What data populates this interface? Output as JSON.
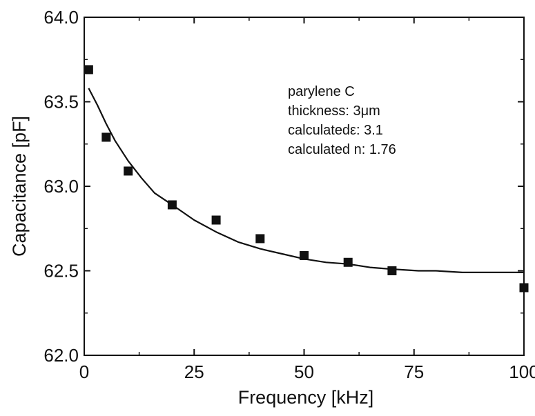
{
  "chart_data": {
    "type": "scatter",
    "xlabel": "Frequency [kHz]",
    "ylabel": "Capacitance [pF]",
    "xlim": [
      0,
      100
    ],
    "ylim": [
      62.0,
      64.0
    ],
    "x_ticks": [
      "0",
      "25",
      "50",
      "75",
      "100"
    ],
    "y_ticks": [
      "62.0",
      "62.5",
      "63.0",
      "63.5",
      "64.0"
    ],
    "grid": false,
    "annotations": [
      "parylene C",
      "thickness: 3μm",
      "calculatedε: 3.1",
      "calculated n: 1.76"
    ],
    "series": [
      {
        "type": "scatter",
        "marker": "square",
        "x": [
          1,
          5,
          10,
          20,
          30,
          40,
          50,
          60,
          70,
          100
        ],
        "y": [
          63.69,
          63.29,
          63.09,
          62.89,
          62.8,
          62.69,
          62.59,
          62.55,
          62.5,
          62.4
        ]
      },
      {
        "type": "line",
        "x": [
          1,
          3,
          5,
          7,
          10,
          13,
          16,
          20,
          25,
          30,
          35,
          40,
          45,
          50,
          55,
          60,
          65,
          70,
          76,
          80,
          86,
          90,
          95,
          100
        ],
        "y": [
          63.58,
          63.48,
          63.37,
          63.27,
          63.15,
          63.05,
          62.96,
          62.89,
          62.8,
          62.73,
          62.67,
          62.63,
          62.6,
          62.57,
          62.55,
          62.54,
          62.52,
          62.51,
          62.5,
          62.5,
          62.49,
          62.49,
          62.49,
          62.49
        ]
      }
    ]
  }
}
